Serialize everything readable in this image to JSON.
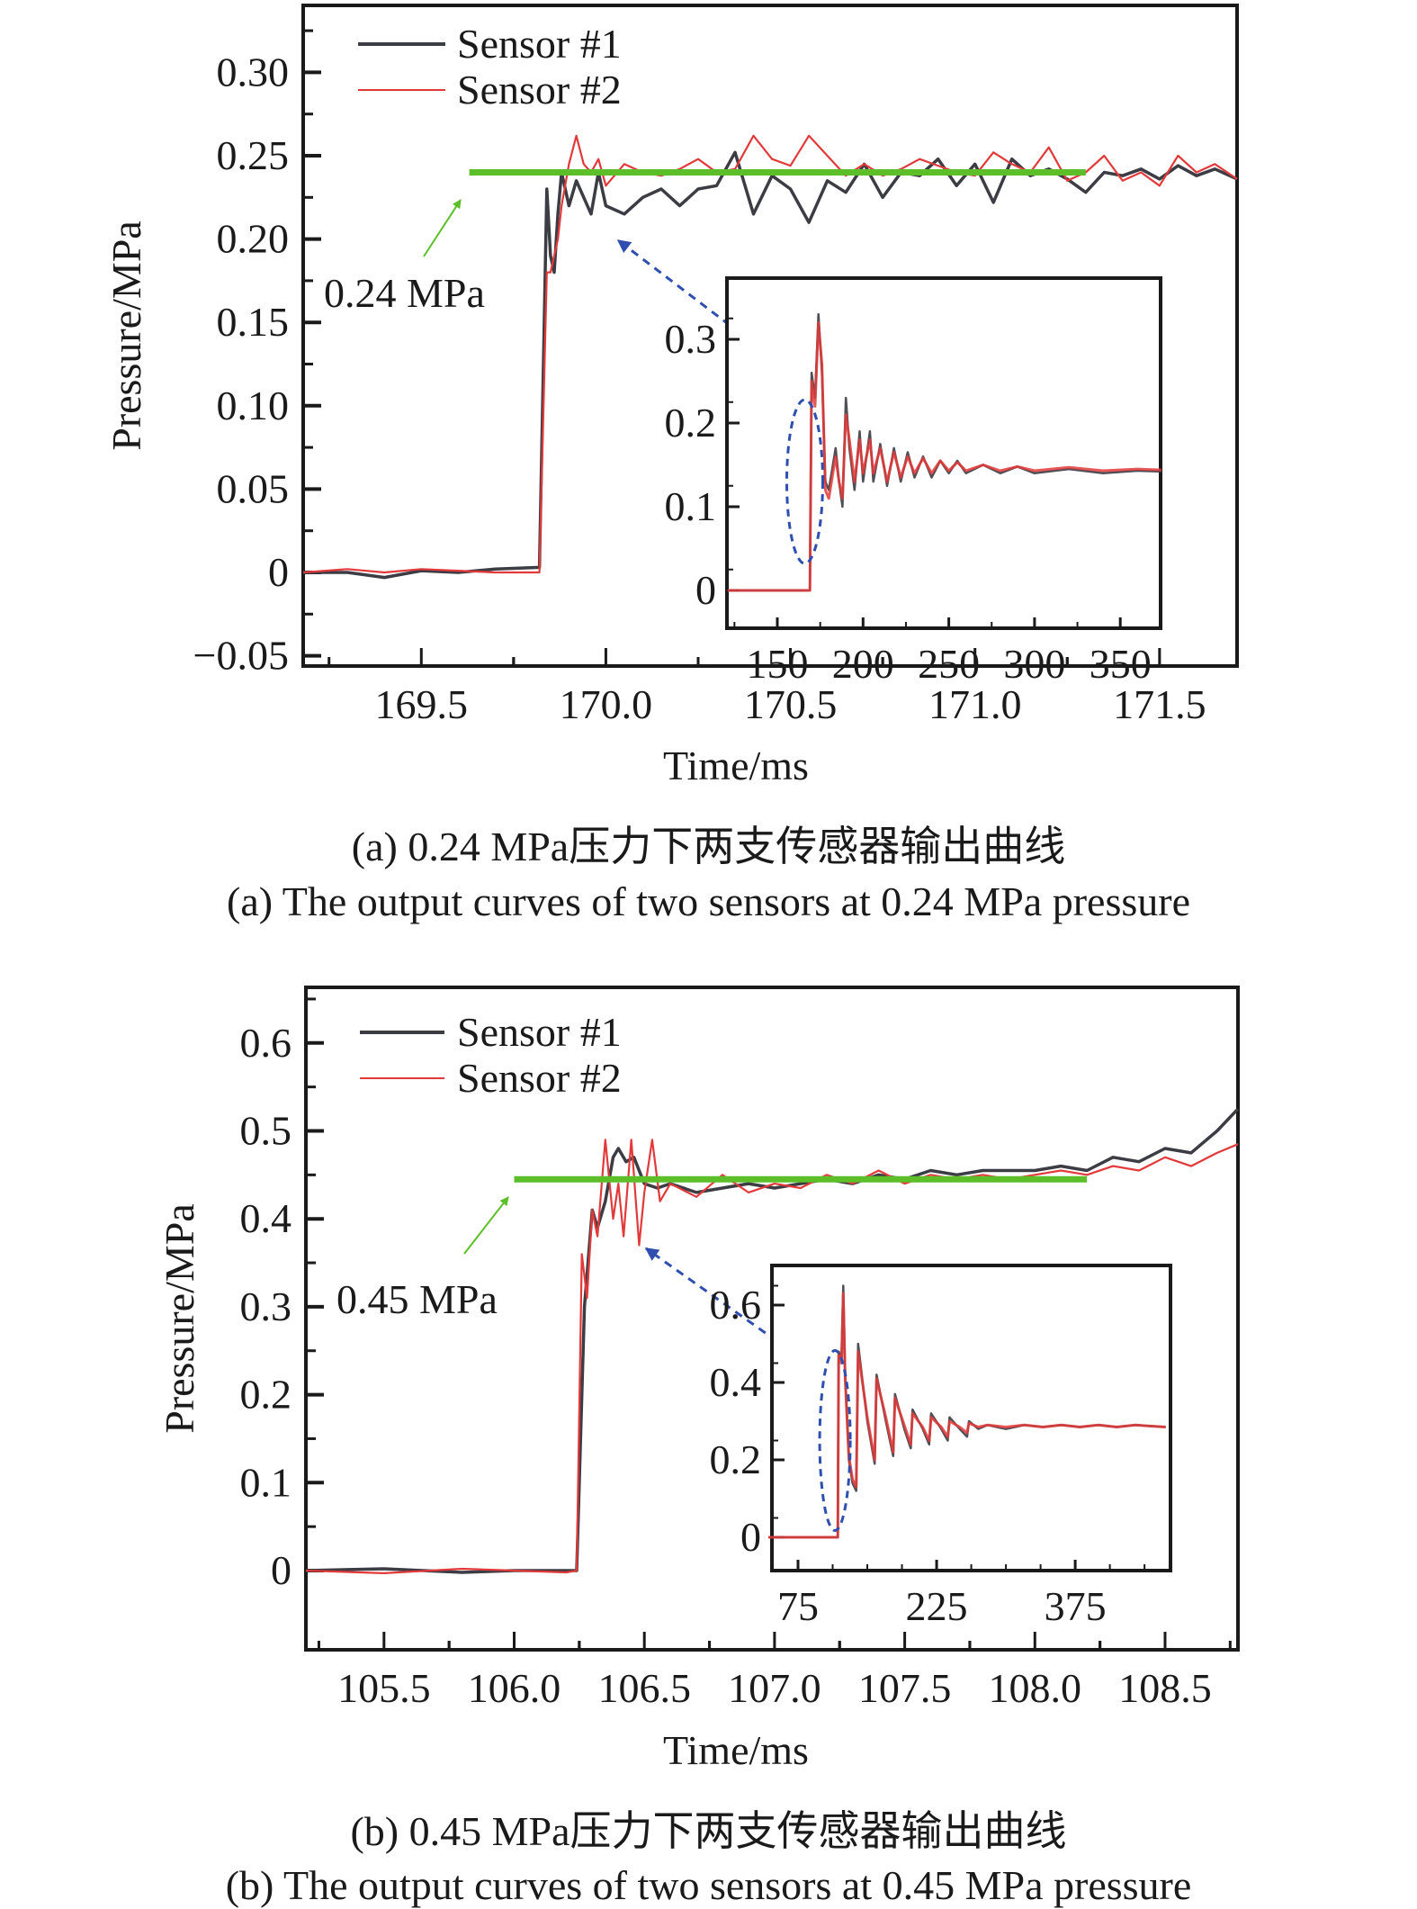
{
  "colors": {
    "sensor1": "#3c3c44",
    "sensor2": "#e23a3a",
    "reference": "#5cbf2a",
    "annotation_arrow_green": "#5cbf2a",
    "annotation_arrow_blue": "#2f4fb0",
    "axis": "#1a1a1a"
  },
  "captions": {
    "a_cn": "(a) 0.24 MPa压力下两支传感器输出曲线",
    "a_en": "(a) The output curves of two sensors at 0.24 MPa pressure",
    "b_cn": "(b) 0.45 MPa压力下两支传感器输出曲线",
    "b_en": "(b) The output curves of two sensors at 0.45 MPa pressure"
  },
  "chart_data": [
    {
      "id": "a",
      "type": "line",
      "title": "(a) The output curves of two sensors at 0.24 MPa pressure",
      "xlabel": "Time/ms",
      "ylabel": "Pressure/MPa",
      "xlim": [
        169.18,
        171.71
      ],
      "ylim": [
        -0.05,
        0.33
      ],
      "xticks": [
        169.5,
        170.0,
        170.5,
        171.0,
        171.5
      ],
      "xtick_labels": [
        "169.5",
        "170.0",
        "170.5",
        "171.0",
        "171.5"
      ],
      "yticks": [
        -0.05,
        0,
        0.05,
        0.1,
        0.15,
        0.2,
        0.25,
        0.3
      ],
      "ytick_labels": [
        "−0.05",
        "0",
        "0.05",
        "0.10",
        "0.15",
        "0.20",
        "0.25",
        "0.30"
      ],
      "grid": false,
      "legend": {
        "placement": "top-left",
        "entries": [
          "Sensor #1",
          "Sensor #2"
        ]
      },
      "step_time": 169.84,
      "reference_line": {
        "value": 0.24,
        "x_range": [
          169.63,
          171.3
        ],
        "label": "0.24 MPa"
      },
      "series": [
        {
          "name": "Sensor #1",
          "x": [
            169.18,
            169.3,
            169.4,
            169.5,
            169.6,
            169.7,
            169.82,
            169.84,
            169.85,
            169.86,
            169.87,
            169.88,
            169.9,
            169.92,
            169.94,
            169.96,
            169.98,
            170.0,
            170.05,
            170.1,
            170.15,
            170.2,
            170.25,
            170.3,
            170.35,
            170.4,
            170.45,
            170.5,
            170.55,
            170.6,
            170.65,
            170.7,
            170.75,
            170.8,
            170.85,
            170.9,
            170.95,
            171.0,
            171.05,
            171.1,
            171.15,
            171.2,
            171.25,
            171.3,
            171.35,
            171.4,
            171.45,
            171.5,
            171.55,
            171.6,
            171.65,
            171.71
          ],
          "y": [
            0.0,
            0.0,
            -0.003,
            0.001,
            0.0,
            0.002,
            0.003,
            0.23,
            0.19,
            0.18,
            0.215,
            0.24,
            0.22,
            0.235,
            0.225,
            0.215,
            0.24,
            0.22,
            0.215,
            0.225,
            0.23,
            0.22,
            0.23,
            0.232,
            0.252,
            0.215,
            0.238,
            0.23,
            0.21,
            0.235,
            0.228,
            0.245,
            0.225,
            0.24,
            0.238,
            0.248,
            0.232,
            0.245,
            0.222,
            0.248,
            0.238,
            0.242,
            0.236,
            0.228,
            0.24,
            0.238,
            0.242,
            0.236,
            0.244,
            0.238,
            0.242,
            0.236
          ]
        },
        {
          "name": "Sensor #2",
          "x": [
            169.18,
            169.3,
            169.4,
            169.5,
            169.6,
            169.7,
            169.82,
            169.84,
            169.85,
            169.86,
            169.87,
            169.88,
            169.9,
            169.92,
            169.94,
            169.96,
            169.98,
            170.0,
            170.05,
            170.1,
            170.15,
            170.2,
            170.25,
            170.3,
            170.35,
            170.4,
            170.45,
            170.5,
            170.55,
            170.6,
            170.65,
            170.7,
            170.75,
            170.8,
            170.85,
            170.9,
            170.95,
            171.0,
            171.05,
            171.1,
            171.15,
            171.2,
            171.25,
            171.3,
            171.35,
            171.4,
            171.45,
            171.5,
            171.55,
            171.6,
            171.65,
            171.71
          ],
          "y": [
            0.0,
            0.002,
            0.0,
            0.002,
            0.001,
            0.0,
            0.0,
            0.18,
            0.18,
            0.19,
            0.2,
            0.22,
            0.245,
            0.262,
            0.245,
            0.24,
            0.248,
            0.232,
            0.245,
            0.24,
            0.238,
            0.242,
            0.248,
            0.24,
            0.242,
            0.262,
            0.248,
            0.244,
            0.262,
            0.25,
            0.238,
            0.245,
            0.238,
            0.242,
            0.248,
            0.244,
            0.24,
            0.238,
            0.252,
            0.245,
            0.24,
            0.255,
            0.235,
            0.24,
            0.25,
            0.235,
            0.24,
            0.232,
            0.25,
            0.24,
            0.245,
            0.236
          ]
        }
      ],
      "inset": {
        "type": "line",
        "xlim": [
          121,
          374
        ],
        "ylim": [
          -0.035,
          0.38
        ],
        "xticks": [
          150,
          200,
          250,
          300,
          350
        ],
        "xtick_labels": [
          "150",
          "200",
          "250",
          "300",
          "350"
        ],
        "yticks": [
          0,
          0.1,
          0.2,
          0.3
        ],
        "ytick_labels": [
          "0",
          "0.1",
          "0.2",
          "0.3"
        ],
        "highlight_ellipse_center": [
          166,
          0.13
        ],
        "series": [
          {
            "name": "Sensor #1",
            "x": [
              121,
              140,
              160,
              169,
              170,
              172,
              174,
              176,
              178,
              180,
              184,
              186,
              188,
              190,
              192,
              195,
              198,
              200,
              204,
              206,
              210,
              214,
              218,
              222,
              226,
              230,
              235,
              240,
              245,
              250,
              255,
              260,
              270,
              280,
              290,
              300,
              320,
              340,
              360,
              374
            ],
            "y": [
              0.0,
              0.0,
              0.0,
              0.0,
              0.26,
              0.23,
              0.33,
              0.26,
              0.13,
              0.12,
              0.17,
              0.13,
              0.1,
              0.23,
              0.17,
              0.12,
              0.19,
              0.13,
              0.19,
              0.13,
              0.175,
              0.125,
              0.17,
              0.13,
              0.165,
              0.135,
              0.16,
              0.135,
              0.155,
              0.14,
              0.155,
              0.14,
              0.15,
              0.14,
              0.148,
              0.14,
              0.145,
              0.14,
              0.143,
              0.142
            ]
          },
          {
            "name": "Sensor #2",
            "x": [
              121,
              140,
              160,
              169,
              170,
              172,
              174,
              176,
              178,
              180,
              184,
              186,
              188,
              190,
              192,
              195,
              198,
              200,
              204,
              206,
              210,
              214,
              218,
              222,
              226,
              230,
              235,
              240,
              245,
              250,
              255,
              260,
              270,
              280,
              290,
              300,
              320,
              340,
              360,
              374
            ],
            "y": [
              0.0,
              0.0,
              0.0,
              0.0,
              0.25,
              0.22,
              0.32,
              0.27,
              0.12,
              0.11,
              0.16,
              0.13,
              0.11,
              0.21,
              0.18,
              0.13,
              0.18,
              0.14,
              0.18,
              0.14,
              0.17,
              0.13,
              0.165,
              0.135,
              0.16,
              0.14,
              0.158,
              0.14,
              0.155,
              0.143,
              0.153,
              0.143,
              0.15,
              0.143,
              0.148,
              0.143,
              0.147,
              0.143,
              0.145,
              0.144
            ]
          }
        ]
      }
    },
    {
      "id": "b",
      "type": "line",
      "title": "(b) The output curves of two sensors at 0.45 MPa pressure",
      "xlabel": "Time/ms",
      "ylabel": "Pressure/MPa",
      "xlim": [
        105.2,
        108.78
      ],
      "ylim": [
        -0.09,
        0.67
      ],
      "xticks": [
        105.5,
        106.0,
        106.5,
        107.0,
        107.5,
        108.0,
        108.5
      ],
      "xtick_labels": [
        "105.5",
        "106.0",
        "106.5",
        "107.0",
        "107.5",
        "108.0",
        "108.5"
      ],
      "yticks": [
        0,
        0.1,
        0.2,
        0.3,
        0.4,
        0.5,
        0.6
      ],
      "ytick_labels": [
        "0",
        "0.1",
        "0.2",
        "0.3",
        "0.4",
        "0.5",
        "0.6"
      ],
      "grid": false,
      "legend": {
        "placement": "top-left",
        "entries": [
          "Sensor #1",
          "Sensor #2"
        ]
      },
      "step_time": 106.24,
      "reference_line": {
        "value": 0.445,
        "x_range": [
          106.0,
          108.2
        ],
        "label": "0.45 MPa"
      },
      "series": [
        {
          "name": "Sensor #1",
          "x": [
            105.2,
            105.5,
            105.8,
            106.0,
            106.2,
            106.24,
            106.27,
            106.3,
            106.32,
            106.35,
            106.38,
            106.4,
            106.43,
            106.46,
            106.5,
            106.55,
            106.6,
            106.7,
            106.8,
            106.9,
            107.0,
            107.1,
            107.2,
            107.3,
            107.4,
            107.5,
            107.6,
            107.7,
            107.8,
            107.9,
            108.0,
            108.1,
            108.2,
            108.3,
            108.4,
            108.5,
            108.6,
            108.7,
            108.78
          ],
          "y": [
            0.0,
            0.002,
            -0.002,
            0.0,
            0.0,
            0.0,
            0.3,
            0.41,
            0.39,
            0.42,
            0.47,
            0.48,
            0.465,
            0.47,
            0.44,
            0.435,
            0.44,
            0.43,
            0.435,
            0.44,
            0.435,
            0.44,
            0.445,
            0.44,
            0.45,
            0.445,
            0.455,
            0.45,
            0.455,
            0.455,
            0.455,
            0.46,
            0.455,
            0.47,
            0.465,
            0.48,
            0.475,
            0.5,
            0.525
          ]
        },
        {
          "name": "Sensor #2",
          "x": [
            105.2,
            105.5,
            105.8,
            106.0,
            106.2,
            106.24,
            106.26,
            106.28,
            106.3,
            106.32,
            106.35,
            106.38,
            106.4,
            106.42,
            106.45,
            106.48,
            106.5,
            106.53,
            106.56,
            106.6,
            106.7,
            106.8,
            106.9,
            107.0,
            107.1,
            107.2,
            107.3,
            107.4,
            107.5,
            107.6,
            107.7,
            107.8,
            107.9,
            108.0,
            108.1,
            108.2,
            108.3,
            108.4,
            108.5,
            108.6,
            108.7,
            108.78
          ],
          "y": [
            0.0,
            -0.003,
            0.002,
            0.0,
            -0.002,
            0.0,
            0.36,
            0.31,
            0.41,
            0.38,
            0.49,
            0.4,
            0.44,
            0.38,
            0.49,
            0.37,
            0.43,
            0.49,
            0.42,
            0.44,
            0.425,
            0.45,
            0.43,
            0.44,
            0.435,
            0.45,
            0.44,
            0.455,
            0.44,
            0.45,
            0.445,
            0.45,
            0.445,
            0.45,
            0.455,
            0.45,
            0.46,
            0.455,
            0.47,
            0.46,
            0.475,
            0.485
          ]
        }
      ],
      "inset": {
        "type": "line",
        "xlim": [
          43,
          473
        ],
        "ylim": [
          -0.07,
          0.71
        ],
        "xticks": [
          75,
          225,
          375
        ],
        "xtick_labels": [
          "75",
          "225",
          "375"
        ],
        "yticks": [
          0,
          0.2,
          0.4,
          0.6
        ],
        "ytick_labels": [
          "0",
          "0.2",
          "0.4",
          "0.6"
        ],
        "highlight_ellipse_center": [
          115,
          0.25
        ],
        "series": [
          {
            "name": "Sensor #1",
            "x": [
              43,
              70,
              100,
              118,
              119,
              122,
              124,
              126,
              130,
              134,
              138,
              140,
              150,
              158,
              160,
              170,
              178,
              180,
              190,
              197,
              199,
              210,
              217,
              219,
              230,
              237,
              239,
              250,
              258,
              260,
              270,
              280,
              300,
              320,
              340,
              360,
              380,
              400,
              420,
              440,
              473
            ],
            "y": [
              0.0,
              0.0,
              0.0,
              0.0,
              0.48,
              0.46,
              0.65,
              0.42,
              0.2,
              0.14,
              0.12,
              0.5,
              0.3,
              0.19,
              0.42,
              0.3,
              0.21,
              0.37,
              0.28,
              0.23,
              0.33,
              0.28,
              0.24,
              0.32,
              0.28,
              0.25,
              0.31,
              0.28,
              0.26,
              0.3,
              0.28,
              0.29,
              0.28,
              0.29,
              0.285,
              0.29,
              0.285,
              0.29,
              0.285,
              0.29,
              0.285
            ]
          },
          {
            "name": "Sensor #2",
            "x": [
              43,
              70,
              100,
              118,
              119,
              122,
              124,
              126,
              130,
              134,
              138,
              140,
              150,
              158,
              160,
              170,
              178,
              180,
              190,
              197,
              199,
              210,
              217,
              219,
              230,
              237,
              239,
              250,
              258,
              260,
              270,
              280,
              300,
              320,
              340,
              360,
              380,
              400,
              420,
              440,
              473
            ],
            "y": [
              0.0,
              0.0,
              0.0,
              0.0,
              0.47,
              0.45,
              0.63,
              0.41,
              0.21,
              0.15,
              0.13,
              0.48,
              0.31,
              0.2,
              0.41,
              0.31,
              0.22,
              0.36,
              0.29,
              0.24,
              0.32,
              0.285,
              0.25,
              0.31,
              0.285,
              0.26,
              0.3,
              0.285,
              0.27,
              0.295,
              0.285,
              0.29,
              0.285,
              0.29,
              0.285,
              0.29,
              0.285,
              0.29,
              0.285,
              0.29,
              0.285
            ]
          }
        ]
      }
    }
  ]
}
